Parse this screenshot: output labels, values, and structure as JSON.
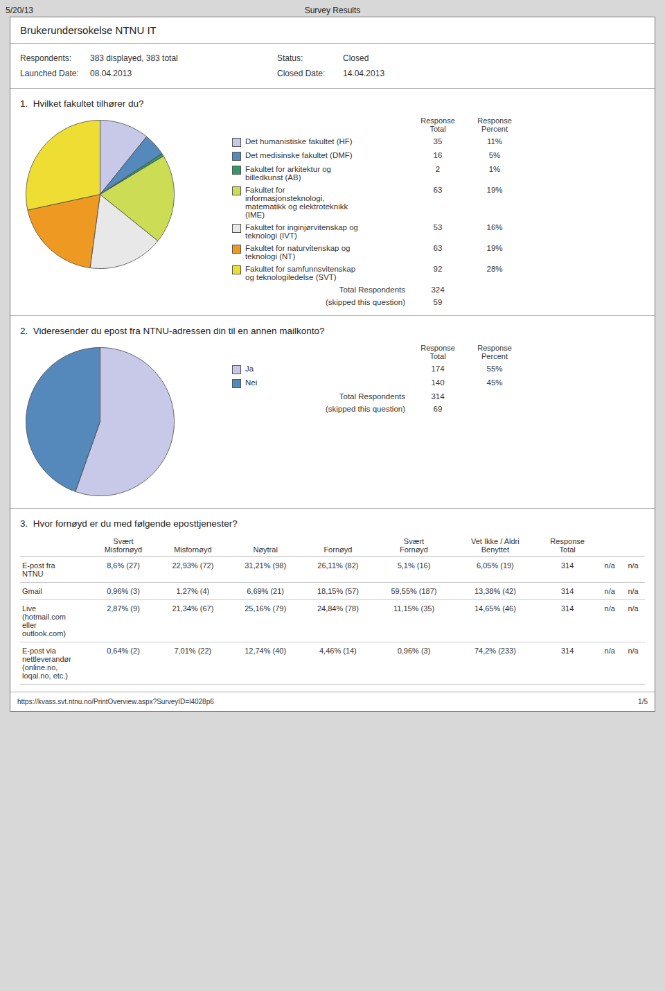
{
  "page": {
    "header": [
      "5/20/13",
      "Survey Results"
    ],
    "title": "Brukerundersokelse NTNU IT",
    "meta": [
      [
        "Respondents:",
        "383 displayed, 383 total",
        "Status:",
        "Closed"
      ],
      [
        "Launched Date:",
        "08.04.2013",
        "Closed Date:",
        "14.04.2013"
      ]
    ],
    "footer": [
      "https://kvass.svt.ntnu.no/PrintOverview.aspx?SurveyID=l4028p6",
      "1/5"
    ]
  },
  "chart_data": [
    {
      "type": "pie",
      "title": "1.  Hvilket fakultet tilhører du?",
      "categories": [
        "Det humanistiske fakultet (HF)",
        "Det medisinske fakultet (DMF)",
        "Fakultet for arkitektur og\nbilledkunst (AB)",
        "Fakultet for\ninformasjonsteknologi,\nmatematikk og elektroteknikk\n(IME)",
        "Fakultet for inginjørvitenskap og\nteknologi (IVT)",
        "Fakultet for naturvitenskap og\nteknologi (NT)",
        "Fakultet for samfunnsvitenskap\nog teknologiledelse (SVT)"
      ],
      "values": [
        35,
        16,
        2,
        63,
        53,
        63,
        92
      ],
      "colors": [
        "#c8c8e8",
        "#5588bb",
        "#339966",
        "#ccdd55",
        "#e8e8e8",
        "#ee9922",
        "#eedd33"
      ],
      "value_headers": [
        "Response\nTotal",
        "Response\nPercent"
      ],
      "percent_labels": [
        "11%",
        "5%",
        "1%",
        "19%",
        "16%",
        "19%",
        "28%"
      ],
      "total_respondents": {
        "label": "Total Respondents",
        "value": 324
      },
      "skipped": {
        "label": "(skipped this question)",
        "value": 59
      }
    },
    {
      "type": "pie",
      "title": "2.  Videresender du epost fra NTNU-adressen din til en annen mailkonto?",
      "categories": [
        "Ja",
        "Nei"
      ],
      "values": [
        174,
        140
      ],
      "colors": [
        "#c8c8e8",
        "#5588bb"
      ],
      "value_headers": [
        "Response\nTotal",
        "Response\nPercent"
      ],
      "percent_labels": [
        "55%",
        "45%"
      ],
      "total_respondents": {
        "label": "Total Respondents",
        "value": 314
      },
      "skipped": {
        "label": "(skipped this question)",
        "value": 69
      }
    },
    {
      "type": "table",
      "title": "3.  Hvor fornøyd er du med følgende eposttjenester?",
      "columns": [
        "Svært\nMisfornøyd",
        "Misfornøyd",
        "Nøytral",
        "Fornøyd",
        "Svært\nFornøyd",
        "Vet Ikke / Aldri\nBenyttet",
        "Response\nTotal",
        null,
        null
      ],
      "rows": [
        {
          "label": "E-post fra\nNTNU",
          "values": [
            "8,6% (27)",
            "22,93% (72)",
            "31,21% (98)",
            "26,11% (82)",
            "5,1% (16)",
            "6,05% (19)",
            "314",
            "n/a",
            "n/a"
          ]
        },
        {
          "label": "Gmail",
          "values": [
            "0,96% (3)",
            "1,27% (4)",
            "6,69% (21)",
            "18,15% (57)",
            "59,55% (187)",
            "13,38% (42)",
            "314",
            "n/a",
            "n/a"
          ]
        },
        {
          "label": "Live\n(hotmail.com\neller\noutlook.com)",
          "values": [
            "2,87% (9)",
            "21,34% (67)",
            "25,16% (79)",
            "24,84% (78)",
            "11,15% (35)",
            "14,65% (46)",
            "314",
            "n/a",
            "n/a"
          ]
        },
        {
          "label": "E-post via\nnettleverandør\n(online.no,\nloqal.no, etc.)",
          "values": [
            "0,64% (2)",
            "7,01% (22)",
            "12,74% (40)",
            "4,46% (14)",
            "0,96% (3)",
            "74,2% (233)",
            "314",
            "n/a",
            "n/a"
          ]
        }
      ]
    }
  ]
}
